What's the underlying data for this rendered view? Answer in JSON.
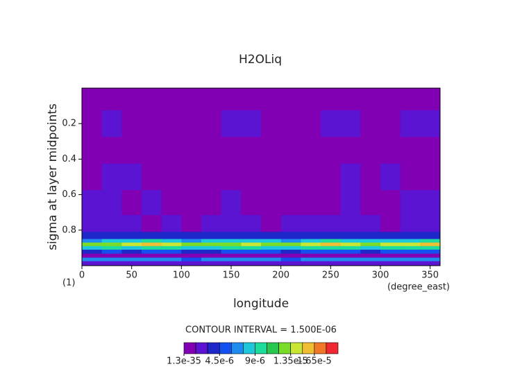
{
  "chart_data": {
    "type": "contour",
    "title": "H2OLiq",
    "ylabel": "sigma at layer midpoints",
    "xlabel": "longitude",
    "x_unit": "(degree_east)",
    "corner_label": "(1)",
    "xlim": [
      0,
      360
    ],
    "xticks": [
      0,
      50,
      100,
      150,
      200,
      250,
      300,
      350
    ],
    "ylim": [
      1,
      0
    ],
    "yticks": [
      0.2,
      0.4,
      0.6,
      0.8
    ],
    "contour_interval": {
      "value": 1.5e-06,
      "label": "CONTOUR INTERVAL = 1.500E-06"
    },
    "colors": [
      "#8200b4",
      "#5a14d2",
      "#1e28c8",
      "#1450f0",
      "#1e8cf0",
      "#1ec8dc",
      "#1edc9b",
      "#28c850",
      "#78dc28",
      "#c8e632",
      "#f0be32",
      "#f07828",
      "#f02832"
    ],
    "colorbar_ticks": [
      {
        "value": 1.3e-35,
        "label": "1.3e-35"
      },
      {
        "value": 4.5e-06,
        "label": "4.5e-6"
      },
      {
        "value": 9e-06,
        "label": "9e-6"
      },
      {
        "value": 1.35e-05,
        "label": "1.35e-5"
      },
      {
        "value": 1.65e-05,
        "label": "1.65e-5"
      }
    ],
    "x": [
      10,
      30,
      50,
      70,
      90,
      110,
      130,
      150,
      170,
      190,
      210,
      230,
      250,
      270,
      290,
      310,
      330,
      350
    ],
    "y": [
      0.05,
      0.2,
      0.35,
      0.5,
      0.65,
      0.78,
      0.84,
      0.86,
      0.88,
      0.9,
      0.92,
      0.945,
      0.965,
      0.985
    ],
    "z": [
      [
        1e-07,
        1e-07,
        1e-07,
        1e-07,
        1e-07,
        1e-07,
        1e-07,
        1e-07,
        1e-07,
        1e-07,
        1e-07,
        1e-07,
        1e-07,
        1e-07,
        1e-07,
        1e-07,
        1e-07,
        1e-07
      ],
      [
        1e-07,
        2e-06,
        1e-07,
        1e-07,
        1e-07,
        1e-07,
        1e-07,
        2e-06,
        2e-06,
        1e-07,
        1e-07,
        1e-07,
        2e-06,
        2e-06,
        1e-07,
        1e-07,
        2e-06,
        2e-06
      ],
      [
        1e-07,
        1e-07,
        1e-07,
        1e-07,
        1e-07,
        1e-07,
        1e-07,
        1e-07,
        1e-07,
        1e-07,
        1e-07,
        1e-07,
        1e-07,
        1e-07,
        1e-07,
        1e-07,
        1e-07,
        1e-07
      ],
      [
        1e-07,
        2e-06,
        2e-06,
        1e-07,
        1e-07,
        1e-07,
        1e-07,
        1e-07,
        1e-07,
        1e-07,
        1e-07,
        1e-07,
        1e-07,
        2e-06,
        1e-07,
        2e-06,
        1e-07,
        1e-07
      ],
      [
        2e-06,
        2e-06,
        1e-07,
        2e-06,
        1e-07,
        1e-07,
        1e-07,
        2e-06,
        1e-07,
        1e-07,
        1e-07,
        1e-07,
        1e-07,
        2e-06,
        1e-07,
        1e-07,
        2e-06,
        2e-06
      ],
      [
        2e-06,
        2e-06,
        2e-06,
        1e-07,
        2e-06,
        1e-07,
        2e-06,
        2e-06,
        2e-06,
        1e-07,
        2e-06,
        2e-06,
        2e-06,
        2e-06,
        2e-06,
        1e-07,
        2e-06,
        2e-06
      ],
      [
        3.5e-06,
        4e-06,
        3.5e-06,
        4e-06,
        3.5e-06,
        3.5e-06,
        4e-06,
        3.5e-06,
        4e-06,
        3.5e-06,
        3.5e-06,
        4e-06,
        3.5e-06,
        3.5e-06,
        4e-06,
        3.5e-06,
        3.5e-06,
        4e-06
      ],
      [
        7e-06,
        8e-06,
        7.5e-06,
        9e-06,
        8e-06,
        7e-06,
        7.5e-06,
        8e-06,
        8.5e-06,
        7.5e-06,
        7e-06,
        8e-06,
        9e-06,
        8e-06,
        7.5e-06,
        8e-06,
        8.5e-06,
        9e-06
      ],
      [
        1.2e-05,
        1.3e-05,
        1.35e-05,
        1.55e-05,
        1.4e-05,
        1.2e-05,
        1.25e-05,
        1.3e-05,
        1.4e-05,
        1.3e-05,
        1.2e-05,
        1.35e-05,
        1.5e-05,
        1.4e-05,
        1.3e-05,
        1.35e-05,
        1.45e-05,
        1.6e-05
      ],
      [
        8e-06,
        9e-06,
        8.5e-06,
        1e-05,
        9e-06,
        8e-06,
        8.5e-06,
        9e-06,
        9.5e-06,
        8.5e-06,
        8e-06,
        9e-06,
        1e-05,
        9e-06,
        8.5e-06,
        9e-06,
        9.5e-06,
        1e-05
      ],
      [
        4e-06,
        4.5e-06,
        4e-06,
        5e-06,
        4.5e-06,
        4e-06,
        4e-06,
        4.5e-06,
        5e-06,
        4.5e-06,
        4e-06,
        4.5e-06,
        5e-06,
        4.5e-06,
        4e-06,
        4.5e-06,
        5e-06,
        5e-06
      ],
      [
        1e-06,
        1e-06,
        1.2e-06,
        1e-06,
        1e-06,
        1.2e-06,
        1e-06,
        1e-06,
        1e-06,
        1.2e-06,
        1e-06,
        1e-06,
        1e-06,
        1.2e-06,
        1e-06,
        1e-06,
        1e-06,
        1e-06
      ],
      [
        6e-06,
        6.5e-06,
        6e-06,
        7e-06,
        6e-06,
        5.5e-06,
        6e-06,
        6.5e-06,
        6e-06,
        6e-06,
        5.5e-06,
        6e-06,
        7e-06,
        6.5e-06,
        6e-06,
        6e-06,
        6.5e-06,
        7e-06
      ],
      [
        2e-06,
        2.5e-06,
        2e-06,
        2.5e-06,
        2e-06,
        2e-06,
        2.5e-06,
        2e-06,
        2e-06,
        2.5e-06,
        2e-06,
        2e-06,
        2.5e-06,
        2e-06,
        2e-06,
        2.5e-06,
        2e-06,
        2e-06
      ]
    ]
  }
}
